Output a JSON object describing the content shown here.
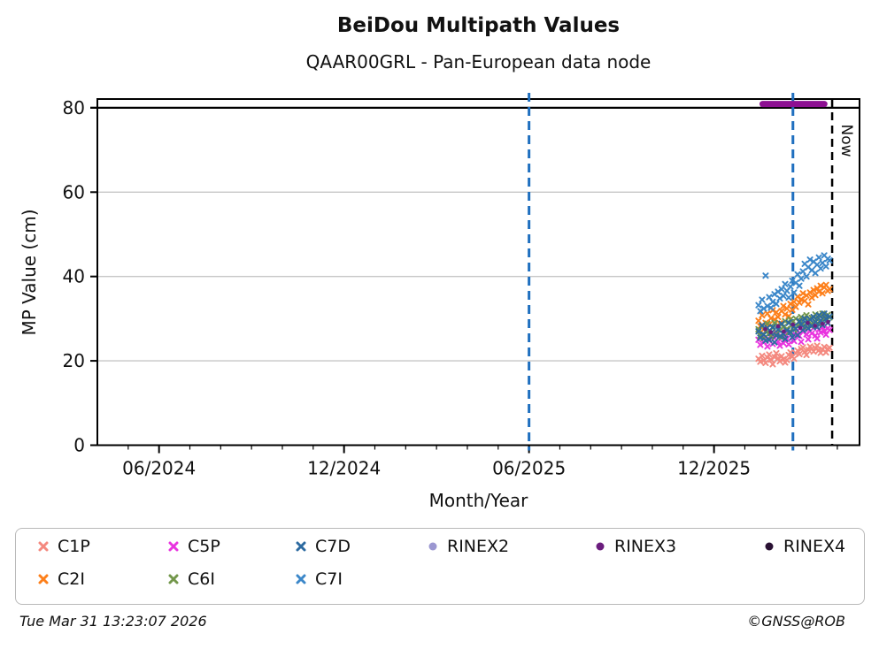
{
  "header": {
    "title": "BeiDou Multipath Values",
    "subtitle": "QAAR00GRL - Pan-European data node"
  },
  "footer": {
    "timestamp": "Tue Mar 31 13:23:07 2026",
    "credit": "©GNSS@ROB"
  },
  "colors": {
    "C1P": "#f4897f",
    "C2I": "#fd7f1a",
    "C5P": "#e934df",
    "C6I": "#73974b",
    "C7D": "#2c6aa0",
    "C7I": "#3b87c9",
    "RINEX2": "#9b97d1",
    "RINEX3": "#6b1d7e",
    "RINEX4": "#2a1133",
    "clipped_bar": "#8d1092",
    "event_line": "#1f6fbf",
    "now_line": "#000000",
    "grid": "#c6c6c6",
    "threshold": "#000000"
  },
  "legend": {
    "items": [
      {
        "label": "C1P",
        "marker": "x",
        "color": "#f4897f",
        "col": 0,
        "row": 0
      },
      {
        "label": "C2I",
        "marker": "x",
        "color": "#fd7f1a",
        "col": 0,
        "row": 1
      },
      {
        "label": "C5P",
        "marker": "x",
        "color": "#e934df",
        "col": 1,
        "row": 0
      },
      {
        "label": "C6I",
        "marker": "x",
        "color": "#73974b",
        "col": 1,
        "row": 1
      },
      {
        "label": "C7D",
        "marker": "x",
        "color": "#2c6aa0",
        "col": 2,
        "row": 0
      },
      {
        "label": "C7I",
        "marker": "x",
        "color": "#3b87c9",
        "col": 2,
        "row": 1
      },
      {
        "label": "RINEX2",
        "marker": "circle",
        "color": "#9b97d1",
        "col": 3,
        "row": 0
      },
      {
        "label": "RINEX3",
        "marker": "circle",
        "color": "#6b1d7e",
        "col": 4,
        "row": 0
      },
      {
        "label": "RINEX4",
        "marker": "circle",
        "color": "#2a1133",
        "col": 5,
        "row": 0
      }
    ]
  },
  "chart_data": {
    "type": "scatter",
    "title": "BeiDou Multipath Values",
    "subtitle": "QAAR00GRL - Pan-European data node",
    "xlabel": "Month/Year",
    "ylabel": "MP Value (cm)",
    "xlim_decimal_year": [
      2024.25,
      2026.31
    ],
    "ylim": [
      0,
      82.1
    ],
    "grid": "horizontal-gray-at-20-40-60",
    "threshold_line_y": 80,
    "y_ticks": [
      0,
      20,
      40,
      60,
      80
    ],
    "x_major_ticks": [
      {
        "x": 2024.4167,
        "label": "06/2024"
      },
      {
        "x": 2024.9167,
        "label": "12/2024"
      },
      {
        "x": 2025.4167,
        "label": "06/2025"
      },
      {
        "x": 2025.9167,
        "label": "12/2025"
      }
    ],
    "x_minor_tick_months": {
      "from": "2024-05",
      "to": "2026-04",
      "step_months": 1
    },
    "event_lines": [
      {
        "x": 2025.4167,
        "style": "dashed"
      },
      {
        "x": 2026.13,
        "style": "dashed"
      }
    ],
    "now_line": {
      "x": 2026.236,
      "style": "dashed",
      "label": "Now"
    },
    "clipped_bar": {
      "series": "RINEX3",
      "y": 80.9,
      "x_start": 2026.048,
      "x_end": 2026.215
    },
    "x_start": 2026.037,
    "x_step": 0.0048,
    "series": [
      {
        "name": "C1P",
        "marker": "x",
        "color": "#f4897f",
        "y": [
          20.5,
          19.8,
          21.2,
          20.1,
          19.5,
          20.8,
          21.5,
          20.3,
          19.2,
          20.9,
          21.8,
          20.6,
          19.9,
          21.1,
          20.4,
          19.6,
          20.2,
          21.4,
          22.0,
          21.0,
          20.5,
          21.8,
          22.4,
          21.6,
          22.8,
          23.2,
          22.1,
          21.4,
          22.6,
          23.4,
          22.9,
          22.2,
          23.0,
          23.6,
          22.5,
          21.9,
          22.7,
          23.3,
          22.0,
          22.8,
          23.1
        ]
      },
      {
        "name": "C2I",
        "marker": "x",
        "color": "#fd7f1a",
        "y": [
          29.5,
          28.2,
          30.8,
          27.5,
          29.0,
          31.2,
          28.6,
          30.1,
          32.0,
          29.8,
          31.5,
          30.4,
          28.9,
          31.8,
          33.0,
          31.0,
          32.4,
          30.6,
          33.5,
          32.1,
          34.0,
          32.8,
          35.2,
          33.8,
          34.6,
          36.0,
          34.2,
          35.5,
          33.4,
          36.2,
          35.0,
          36.8,
          35.6,
          37.2,
          36.4,
          37.8,
          36.0,
          37.4,
          38.0,
          36.6,
          37.0
        ]
      },
      {
        "name": "C5P",
        "marker": "x",
        "color": "#e934df",
        "y": [
          25.0,
          23.8,
          26.2,
          24.4,
          25.6,
          23.4,
          24.8,
          26.0,
          24.0,
          25.4,
          26.6,
          24.6,
          23.6,
          25.8,
          24.2,
          26.4,
          25.2,
          23.9,
          26.8,
          25.5,
          24.7,
          26.1,
          27.2,
          25.9,
          24.5,
          26.9,
          27.6,
          26.3,
          25.1,
          27.0,
          26.5,
          27.8,
          26.0,
          25.3,
          27.4,
          26.7,
          28.0,
          27.1,
          26.2,
          27.7,
          27.3
        ]
      },
      {
        "name": "C6I",
        "marker": "x",
        "color": "#73974b",
        "y": [
          27.5,
          26.0,
          28.2,
          25.4,
          27.0,
          28.8,
          26.5,
          25.8,
          27.8,
          29.0,
          26.2,
          28.4,
          27.2,
          25.6,
          28.0,
          29.4,
          27.6,
          26.8,
          29.8,
          28.6,
          27.4,
          30.0,
          28.2,
          29.2,
          30.4,
          28.8,
          27.9,
          30.8,
          29.6,
          28.4,
          30.2,
          29.0,
          31.0,
          29.9,
          28.7,
          30.6,
          31.2,
          30.0,
          29.4,
          30.9,
          30.3
        ]
      },
      {
        "name": "C7D",
        "marker": "x",
        "color": "#2c6aa0",
        "y": [
          27.0,
          25.5,
          28.4,
          26.2,
          24.8,
          27.8,
          25.0,
          26.6,
          28.0,
          24.4,
          26.0,
          27.4,
          25.8,
          28.8,
          26.4,
          25.2,
          27.2,
          29.0,
          26.8,
          25.6,
          28.2,
          27.6,
          26.1,
          29.4,
          28.6,
          27.3,
          30.0,
          28.9,
          27.7,
          29.8,
          28.3,
          30.4,
          29.2,
          28.0,
          30.8,
          29.6,
          28.5,
          31.2,
          30.0,
          29.0,
          30.5
        ]
      },
      {
        "name": "C7I",
        "marker": "x",
        "color": "#3b87c9",
        "y": [
          33.2,
          31.8,
          34.5,
          32.4,
          40.2,
          33.0,
          35.1,
          32.6,
          34.0,
          35.8,
          33.5,
          36.4,
          34.8,
          37.0,
          35.4,
          38.2,
          36.6,
          35.0,
          37.6,
          39.0,
          36.2,
          38.5,
          40.5,
          37.8,
          39.5,
          41.2,
          43.0,
          40.0,
          42.2,
          44.0,
          41.5,
          43.5,
          40.8,
          42.8,
          44.5,
          41.9,
          43.2,
          45.0,
          42.4,
          44.2,
          43.8
        ]
      }
    ],
    "extra_points": [
      {
        "name": "RINEX3",
        "marker": "circle",
        "color": "#6b1d7e",
        "points": [
          [
            2026.055,
            27.5
          ],
          [
            2026.07,
            26.8
          ],
          [
            2026.09,
            28.2
          ],
          [
            2026.105,
            27.0
          ],
          [
            2026.13,
            28.6
          ],
          [
            2026.15,
            27.8
          ],
          [
            2026.17,
            29.0
          ],
          [
            2026.19,
            28.3
          ],
          [
            2026.21,
            28.8
          ],
          [
            2026.225,
            29.2
          ]
        ]
      }
    ],
    "legend_position": "below"
  }
}
